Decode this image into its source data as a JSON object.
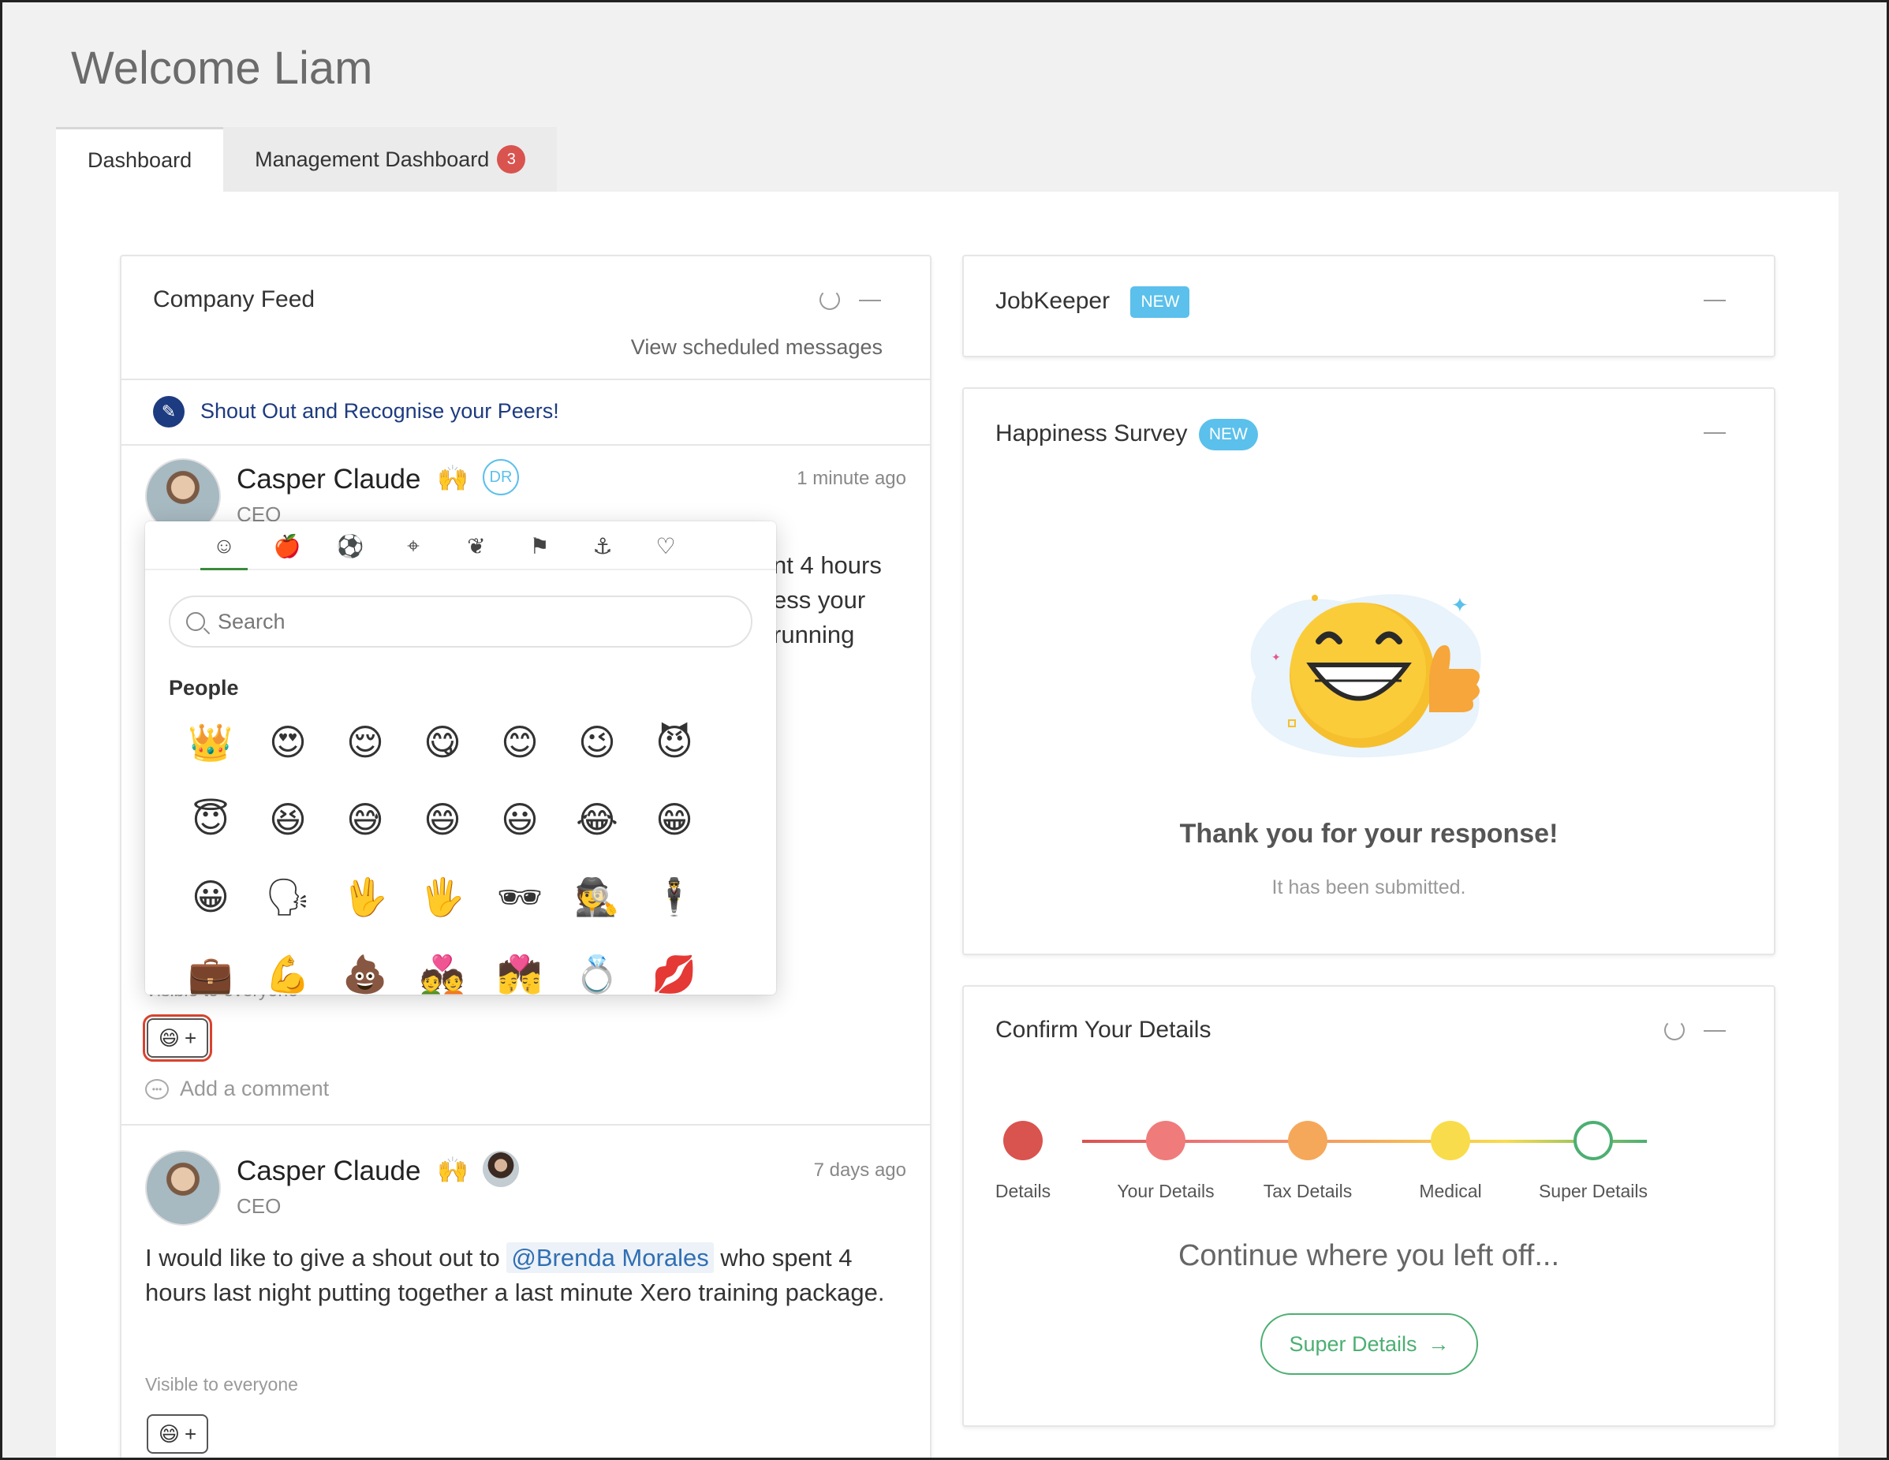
{
  "header": {
    "welcome": "Welcome Liam"
  },
  "tabs": [
    {
      "label": "Dashboard",
      "active": true
    },
    {
      "label": "Management Dashboard",
      "badge": "3"
    }
  ],
  "feed": {
    "title": "Company Feed",
    "scheduled_link": "View scheduled messages",
    "shout_out": "Shout Out and Recognise your Peers!",
    "posts": [
      {
        "author": "Casper Claude",
        "role": "CEO",
        "time": "1 minute ago",
        "clap": "🙌",
        "tag_initials": "DR",
        "text_line1": "nt 4 hours",
        "text_line2": "ess your",
        "text_line3": "running",
        "visibility": "Visible to everyone",
        "comment_placeholder": "Add a comment",
        "comment_icon_glyph": "•••"
      },
      {
        "author": "Casper Claude",
        "role": "CEO",
        "time": "7 days ago",
        "clap": "🙌",
        "text_before": "I would like to give a shout out to ",
        "mention": "@Brenda Morales",
        "text_after": " who spent 4 hours last night putting together a last minute Xero training package.",
        "visibility": "Visible to everyone"
      }
    ],
    "react_button": {
      "emoji": "😄",
      "plus": "+"
    }
  },
  "emoji_picker": {
    "categories": [
      {
        "name": "people",
        "glyph": "☺",
        "active": true
      },
      {
        "name": "food",
        "glyph": "🍎"
      },
      {
        "name": "activity",
        "glyph": "⚽"
      },
      {
        "name": "places",
        "glyph": "⌖"
      },
      {
        "name": "nature",
        "glyph": "❦"
      },
      {
        "name": "flags",
        "glyph": "⚑"
      },
      {
        "name": "objects",
        "glyph": "⚓"
      },
      {
        "name": "symbols",
        "glyph": "♡"
      }
    ],
    "search_placeholder": "Search",
    "section_label": "People",
    "emojis": [
      "👑",
      "😍",
      "😌",
      "😋",
      "😊",
      "😉",
      "😈",
      "😇",
      "😆",
      "😅",
      "😄",
      "😃",
      "😂",
      "😁",
      "😀",
      "🗣",
      "🖖",
      "🖐",
      "🕶",
      "🕵",
      "🕴",
      "💼",
      "💪",
      "💩",
      "💑",
      "💏",
      "💍",
      "💋"
    ]
  },
  "jobkeeper": {
    "title": "JobKeeper",
    "badge": "NEW"
  },
  "happiness": {
    "title": "Happiness Survey",
    "badge": "NEW",
    "thanks": "Thank you for your response!",
    "submitted": "It has been submitted."
  },
  "confirm": {
    "title": "Confirm Your Details",
    "steps": [
      {
        "label": "Details",
        "color": "#d9534f",
        "done": true
      },
      {
        "label": "Your Details",
        "color": "#ef7b7b",
        "done": true
      },
      {
        "label": "Tax Details",
        "color": "#f5a85a",
        "done": true
      },
      {
        "label": "Medical",
        "color": "#f9dc4b",
        "done": true
      },
      {
        "label": "Super Details",
        "color": "#4caf72",
        "done": false
      }
    ],
    "continue_text": "Continue where you left off...",
    "button_label": "Super Details",
    "button_arrow": "→"
  }
}
